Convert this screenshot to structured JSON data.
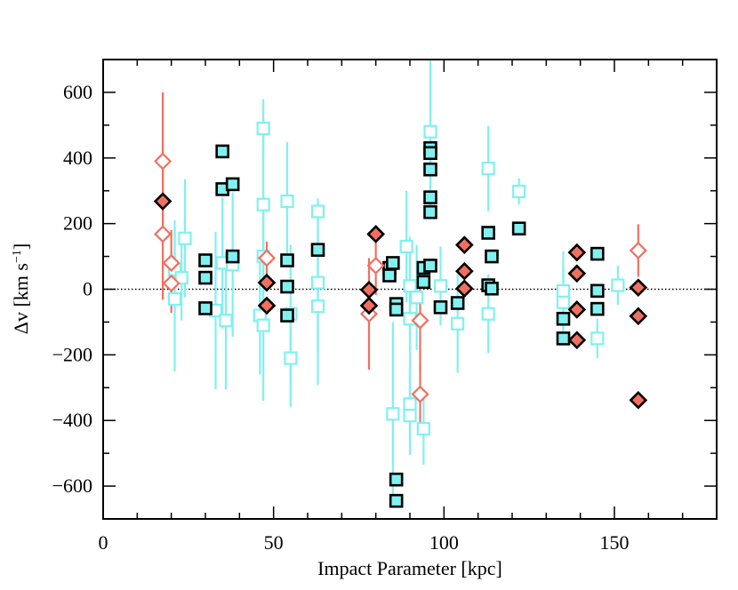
{
  "chart_data": {
    "type": "scatter",
    "title": "",
    "xlabel": "Impact Parameter [kpc]",
    "ylabel_prefix": "Δv [km s",
    "ylabel_sup": "−1",
    "ylabel_suffix": "]",
    "xlim": [
      0,
      180
    ],
    "ylim": [
      -700,
      700
    ],
    "x_ticks": [
      0,
      50,
      100,
      150
    ],
    "x_tick_labels": [
      "0",
      "50",
      "100",
      "150"
    ],
    "y_ticks": [
      -600,
      -400,
      -200,
      0,
      200,
      400,
      600
    ],
    "y_tick_labels": [
      "−600",
      "−400",
      "−200",
      "0",
      "200",
      "400",
      "600"
    ],
    "zero_line": true,
    "colors": {
      "cyan": "#80f0f0",
      "red": "#f07060",
      "black": "#000000"
    },
    "series": [
      {
        "name": "open-cyan-squares",
        "marker": "square",
        "filled": false,
        "color": "cyan",
        "points": [
          {
            "x": 21,
            "y": 60,
            "err": 150
          },
          {
            "x": 21,
            "y": -30,
            "err": 220
          },
          {
            "x": 23,
            "y": 35,
            "err": 130
          },
          {
            "x": 24,
            "y": 155,
            "err": 180
          },
          {
            "x": 33,
            "y": -65,
            "err": 240
          },
          {
            "x": 35,
            "y": 80,
            "err": 200
          },
          {
            "x": 36,
            "y": -95,
            "err": 210
          },
          {
            "x": 38,
            "y": 75,
            "err": 220
          },
          {
            "x": 46,
            "y": -80,
            "err": 180
          },
          {
            "x": 47,
            "y": 490,
            "err": 90
          },
          {
            "x": 47,
            "y": 258,
            "err": 210
          },
          {
            "x": 47,
            "y": 100,
            "err": 200
          },
          {
            "x": 47,
            "y": -110,
            "err": 230
          },
          {
            "x": 54,
            "y": 268,
            "err": 180
          },
          {
            "x": 55,
            "y": -75,
            "err": 210
          },
          {
            "x": 55,
            "y": -210,
            "err": 150
          },
          {
            "x": 63,
            "y": 237,
            "err": 40
          },
          {
            "x": 63,
            "y": 20,
            "err": 220
          },
          {
            "x": 63,
            "y": -52,
            "err": 240
          },
          {
            "x": 85,
            "y": -380,
            "err": 280
          },
          {
            "x": 89,
            "y": 130,
            "err": 170
          },
          {
            "x": 90,
            "y": 10,
            "err": 150
          },
          {
            "x": 90,
            "y": -90,
            "err": 200
          },
          {
            "x": 90,
            "y": -350,
            "err": 110
          },
          {
            "x": 90,
            "y": -385,
            "err": 120
          },
          {
            "x": 92,
            "y": -25,
            "err": 160
          },
          {
            "x": 94,
            "y": -425,
            "err": 110
          },
          {
            "x": 96,
            "y": 480,
            "err": 230
          },
          {
            "x": 99,
            "y": 10,
            "err": 120
          },
          {
            "x": 104,
            "y": -105,
            "err": 150
          },
          {
            "x": 113,
            "y": 368,
            "err": 130
          },
          {
            "x": 113,
            "y": -75,
            "err": 120
          },
          {
            "x": 122,
            "y": 298,
            "err": 40
          },
          {
            "x": 135,
            "y": -40,
            "err": 100
          },
          {
            "x": 135,
            "y": -5,
            "err": 120
          },
          {
            "x": 145,
            "y": -150,
            "err": 60
          },
          {
            "x": 151,
            "y": 12,
            "err": 60
          }
        ]
      },
      {
        "name": "filled-cyan-squares",
        "marker": "square",
        "filled": true,
        "color": "cyan",
        "points": [
          {
            "x": 30,
            "y": 88,
            "err": 0
          },
          {
            "x": 30,
            "y": 35,
            "err": 0
          },
          {
            "x": 30,
            "y": -58,
            "err": 0
          },
          {
            "x": 35,
            "y": 420,
            "err": 0
          },
          {
            "x": 35,
            "y": 305,
            "err": 0
          },
          {
            "x": 38,
            "y": 320,
            "err": 0
          },
          {
            "x": 38,
            "y": 100,
            "err": 0
          },
          {
            "x": 54,
            "y": 88,
            "err": 0
          },
          {
            "x": 54,
            "y": 8,
            "err": 0
          },
          {
            "x": 54,
            "y": -80,
            "err": 0
          },
          {
            "x": 63,
            "y": 120,
            "err": 0
          },
          {
            "x": 84,
            "y": 65,
            "err": 0
          },
          {
            "x": 84,
            "y": 42,
            "err": 0
          },
          {
            "x": 85,
            "y": 80,
            "err": 0
          },
          {
            "x": 86,
            "y": -45,
            "err": 0
          },
          {
            "x": 86,
            "y": -62,
            "err": 0
          },
          {
            "x": 86,
            "y": -580,
            "err": 0
          },
          {
            "x": 86,
            "y": -645,
            "err": 0
          },
          {
            "x": 94,
            "y": 65,
            "err": 0
          },
          {
            "x": 94,
            "y": 22,
            "err": 0
          },
          {
            "x": 96,
            "y": 430,
            "err": 0
          },
          {
            "x": 96,
            "y": 415,
            "err": 0
          },
          {
            "x": 96,
            "y": 365,
            "err": 0
          },
          {
            "x": 96,
            "y": 280,
            "err": 0
          },
          {
            "x": 96,
            "y": 235,
            "err": 0
          },
          {
            "x": 96,
            "y": 72,
            "err": 0
          },
          {
            "x": 99,
            "y": -55,
            "err": 0
          },
          {
            "x": 104,
            "y": -42,
            "err": 0
          },
          {
            "x": 113,
            "y": 172,
            "err": 0
          },
          {
            "x": 114,
            "y": 100,
            "err": 0
          },
          {
            "x": 113,
            "y": 12,
            "err": 0
          },
          {
            "x": 114,
            "y": 2,
            "err": 0
          },
          {
            "x": 122,
            "y": 185,
            "err": 0
          },
          {
            "x": 135,
            "y": -90,
            "err": 0
          },
          {
            "x": 135,
            "y": -150,
            "err": 0
          },
          {
            "x": 145,
            "y": 108,
            "err": 0
          },
          {
            "x": 145,
            "y": -5,
            "err": 0
          },
          {
            "x": 145,
            "y": -60,
            "err": 0
          }
        ]
      },
      {
        "name": "open-red-diamonds",
        "marker": "diamond",
        "filled": false,
        "color": "red",
        "points": [
          {
            "x": 17.5,
            "y": 390,
            "err": 210
          },
          {
            "x": 17.5,
            "y": 168,
            "err": 200
          },
          {
            "x": 20,
            "y": 80,
            "err": 100
          },
          {
            "x": 20,
            "y": 18,
            "err": 90
          },
          {
            "x": 48,
            "y": 95,
            "err": 50
          },
          {
            "x": 78,
            "y": -75,
            "err": 170
          },
          {
            "x": 80,
            "y": 72,
            "err": 90
          },
          {
            "x": 93,
            "y": -95,
            "err": 160
          },
          {
            "x": 93,
            "y": -320,
            "err": 90
          },
          {
            "x": 157,
            "y": 118,
            "err": 80
          }
        ]
      },
      {
        "name": "filled-red-diamonds",
        "marker": "diamond",
        "filled": true,
        "color": "red",
        "points": [
          {
            "x": 17.5,
            "y": 268,
            "err": 0
          },
          {
            "x": 48,
            "y": 20,
            "err": 0
          },
          {
            "x": 48,
            "y": -50,
            "err": 0
          },
          {
            "x": 78,
            "y": -2,
            "err": 0
          },
          {
            "x": 78,
            "y": -50,
            "err": 0
          },
          {
            "x": 80,
            "y": 168,
            "err": 0
          },
          {
            "x": 106,
            "y": 135,
            "err": 0
          },
          {
            "x": 106,
            "y": 55,
            "err": 0
          },
          {
            "x": 106,
            "y": 2,
            "err": 0
          },
          {
            "x": 139,
            "y": 112,
            "err": 0
          },
          {
            "x": 139,
            "y": 48,
            "err": 0
          },
          {
            "x": 139,
            "y": -62,
            "err": 0
          },
          {
            "x": 139,
            "y": -155,
            "err": 0
          },
          {
            "x": 157,
            "y": 5,
            "err": 0
          },
          {
            "x": 157,
            "y": -82,
            "err": 0
          },
          {
            "x": 157,
            "y": -338,
            "err": 0
          }
        ]
      }
    ]
  }
}
